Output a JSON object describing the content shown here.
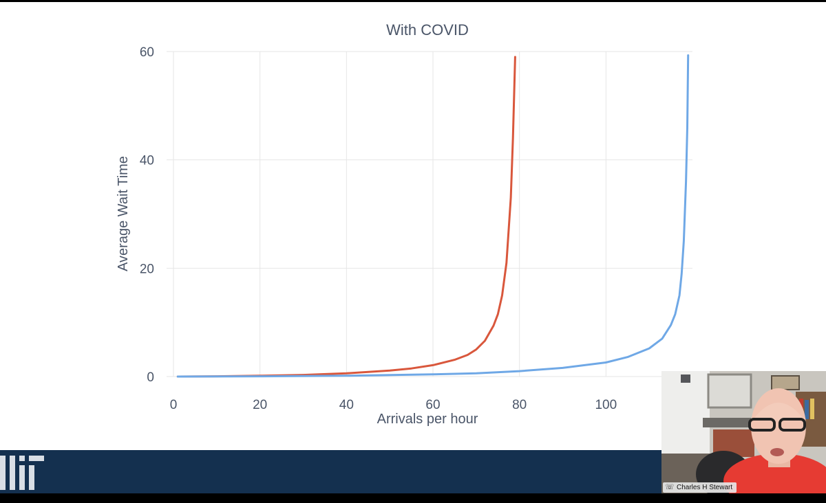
{
  "chart_data": {
    "type": "line",
    "title": "With COVID",
    "xlabel": "Arrivals per hour",
    "ylabel": "Average Wait Time",
    "xlim": [
      0,
      120
    ],
    "ylim": [
      0,
      60
    ],
    "xticks": [
      0,
      20,
      40,
      60,
      80,
      100
    ],
    "yticks": [
      0,
      20,
      40,
      60
    ],
    "grid": true,
    "legend": "none",
    "series": [
      {
        "color": "#d9573c",
        "points": [
          [
            1,
            0.0
          ],
          [
            10,
            0.05
          ],
          [
            20,
            0.15
          ],
          [
            30,
            0.3
          ],
          [
            40,
            0.6
          ],
          [
            50,
            1.1
          ],
          [
            55,
            1.5
          ],
          [
            60,
            2.1
          ],
          [
            65,
            3.1
          ],
          [
            68,
            4.0
          ],
          [
            70,
            5.0
          ],
          [
            72,
            6.6
          ],
          [
            74,
            9.4
          ],
          [
            75,
            11.5
          ],
          [
            76,
            15.0
          ],
          [
            77,
            21.0
          ],
          [
            78,
            33.0
          ],
          [
            78.5,
            44.0
          ],
          [
            79,
            59.0
          ]
        ]
      },
      {
        "color": "#6fa8e6",
        "points": [
          [
            1,
            0.0
          ],
          [
            20,
            0.05
          ],
          [
            40,
            0.15
          ],
          [
            60,
            0.4
          ],
          [
            70,
            0.6
          ],
          [
            80,
            1.0
          ],
          [
            90,
            1.6
          ],
          [
            100,
            2.6
          ],
          [
            105,
            3.6
          ],
          [
            110,
            5.2
          ],
          [
            113,
            7.0
          ],
          [
            115,
            9.5
          ],
          [
            116,
            11.5
          ],
          [
            117,
            15.0
          ],
          [
            117.5,
            19.0
          ],
          [
            118,
            25.0
          ],
          [
            118.5,
            36.0
          ],
          [
            118.8,
            46.0
          ],
          [
            119,
            59.3
          ]
        ]
      }
    ]
  },
  "webcam": {
    "participant_name": "Charles H Stewart",
    "icon": "microphone-phone-icon"
  },
  "footer": {
    "logo_icon": "institution-logo-icon",
    "background": "#14304f"
  }
}
